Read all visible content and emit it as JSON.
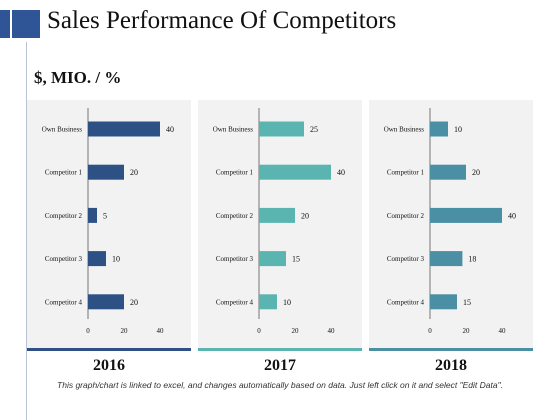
{
  "slide": {
    "title": "Sales Performance Of Competitors",
    "unit_label": "$, MIO. / %",
    "footnote": "This graph/chart is linked to excel, and changes automatically based on data. Just left click on it and select \"Edit Data\"."
  },
  "colors": {
    "header_accent": "#2f5597",
    "panel_background": "#f2f2f2"
  },
  "chart_data": [
    {
      "type": "bar",
      "orientation": "horizontal",
      "label": "2016",
      "color": "#2e5185",
      "categories": [
        "Own Business",
        "Competitor 1",
        "Competitor 2",
        "Competitor 3",
        "Competitor 4"
      ],
      "values": [
        40,
        20,
        5,
        10,
        20
      ],
      "xlim": [
        0,
        40
      ],
      "xticks": [
        0,
        20,
        40
      ],
      "grid": false
    },
    {
      "type": "bar",
      "orientation": "horizontal",
      "label": "2017",
      "color": "#5ab5b0",
      "categories": [
        "Own Business",
        "Competitor 1",
        "Competitor 2",
        "Competitor 3",
        "Competitor 4"
      ],
      "values": [
        25,
        40,
        20,
        15,
        10
      ],
      "xlim": [
        0,
        40
      ],
      "xticks": [
        0,
        20,
        40
      ],
      "grid": false
    },
    {
      "type": "bar",
      "orientation": "horizontal",
      "label": "2018",
      "color": "#4a8fa3",
      "categories": [
        "Own Business",
        "Competitor 1",
        "Competitor 2",
        "Competitor 3",
        "Competitor 4"
      ],
      "values": [
        10,
        20,
        40,
        18,
        15
      ],
      "xlim": [
        0,
        40
      ],
      "xticks": [
        0,
        20,
        40
      ],
      "grid": false
    }
  ]
}
